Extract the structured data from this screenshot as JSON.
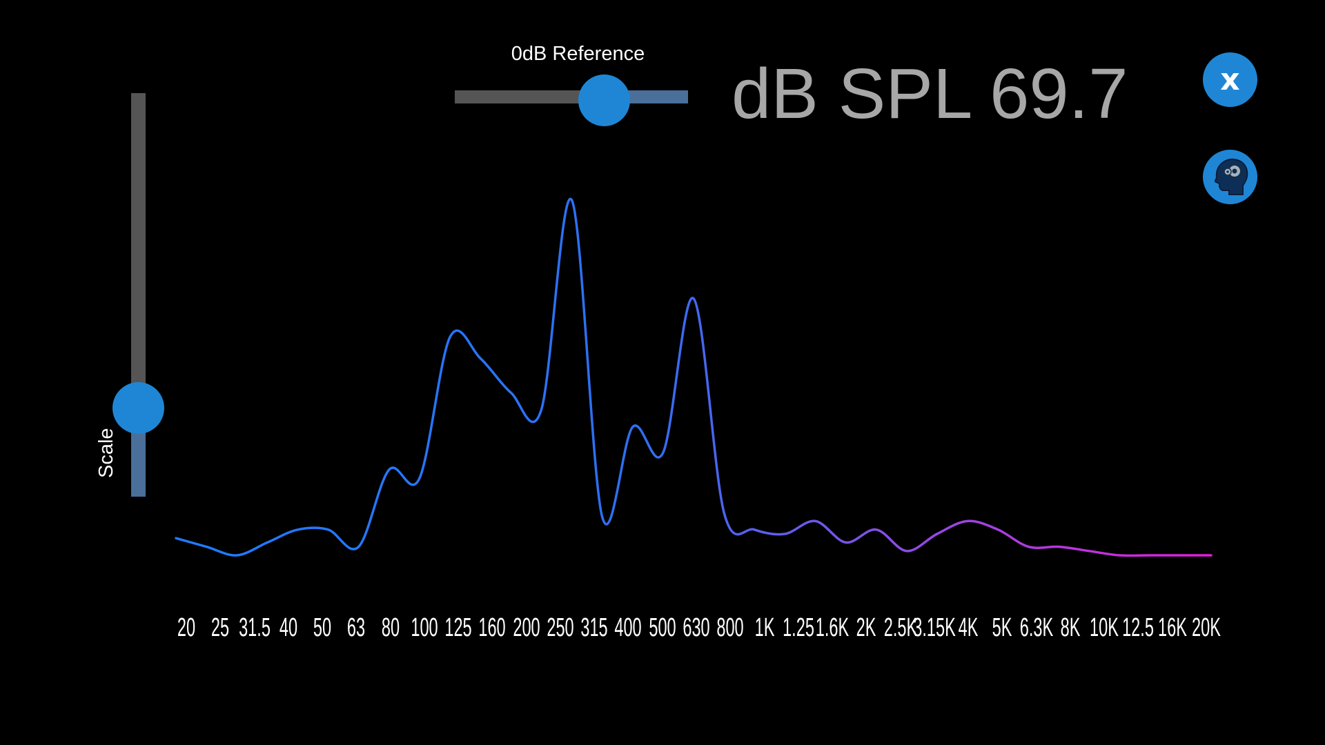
{
  "reference": {
    "label": "0dB Reference",
    "value": 0.64
  },
  "readout": {
    "text": "dB SPL 69.7"
  },
  "buttons": {
    "close": {
      "glyph": "x",
      "icon": "close-icon",
      "color": "#1f86d6"
    },
    "head": {
      "icon": "head-gears-icon",
      "color": "#1f86d6"
    }
  },
  "scale": {
    "label": "Scale",
    "value": 0.22
  },
  "colors": {
    "accent": "#1f86d6",
    "track": "#555555",
    "track_fill": "#4a6f9a",
    "curve_start": "#1e7cff",
    "curve_end": "#e01fd6",
    "readout": "#a7a7a7"
  },
  "chart_data": {
    "type": "line",
    "x_scale": "log",
    "bands": [
      "20",
      "25",
      "31.5",
      "40",
      "50",
      "63",
      "80",
      "100",
      "125",
      "160",
      "200",
      "250",
      "315",
      "400",
      "500",
      "630",
      "800",
      "1K",
      "1.25",
      "1.6K",
      "2K",
      "2.5K",
      "3.15K",
      "4K",
      "5K",
      "6.3K",
      "8K",
      "10K",
      "12.5",
      "16K",
      "20K"
    ],
    "series": [
      {
        "values": [
          0.04,
          0.02,
          0.0,
          0.03,
          0.06,
          0.06,
          0.02,
          0.2,
          0.18,
          0.51,
          0.46,
          0.38,
          0.34,
          0.83,
          0.09,
          0.3,
          0.24,
          0.6,
          0.1,
          0.06,
          0.05,
          0.08,
          0.03,
          0.06,
          0.01,
          0.05,
          0.08,
          0.06,
          0.02,
          0.02,
          0.01,
          0.0,
          0.0,
          0.0,
          0.0
        ]
      }
    ]
  }
}
